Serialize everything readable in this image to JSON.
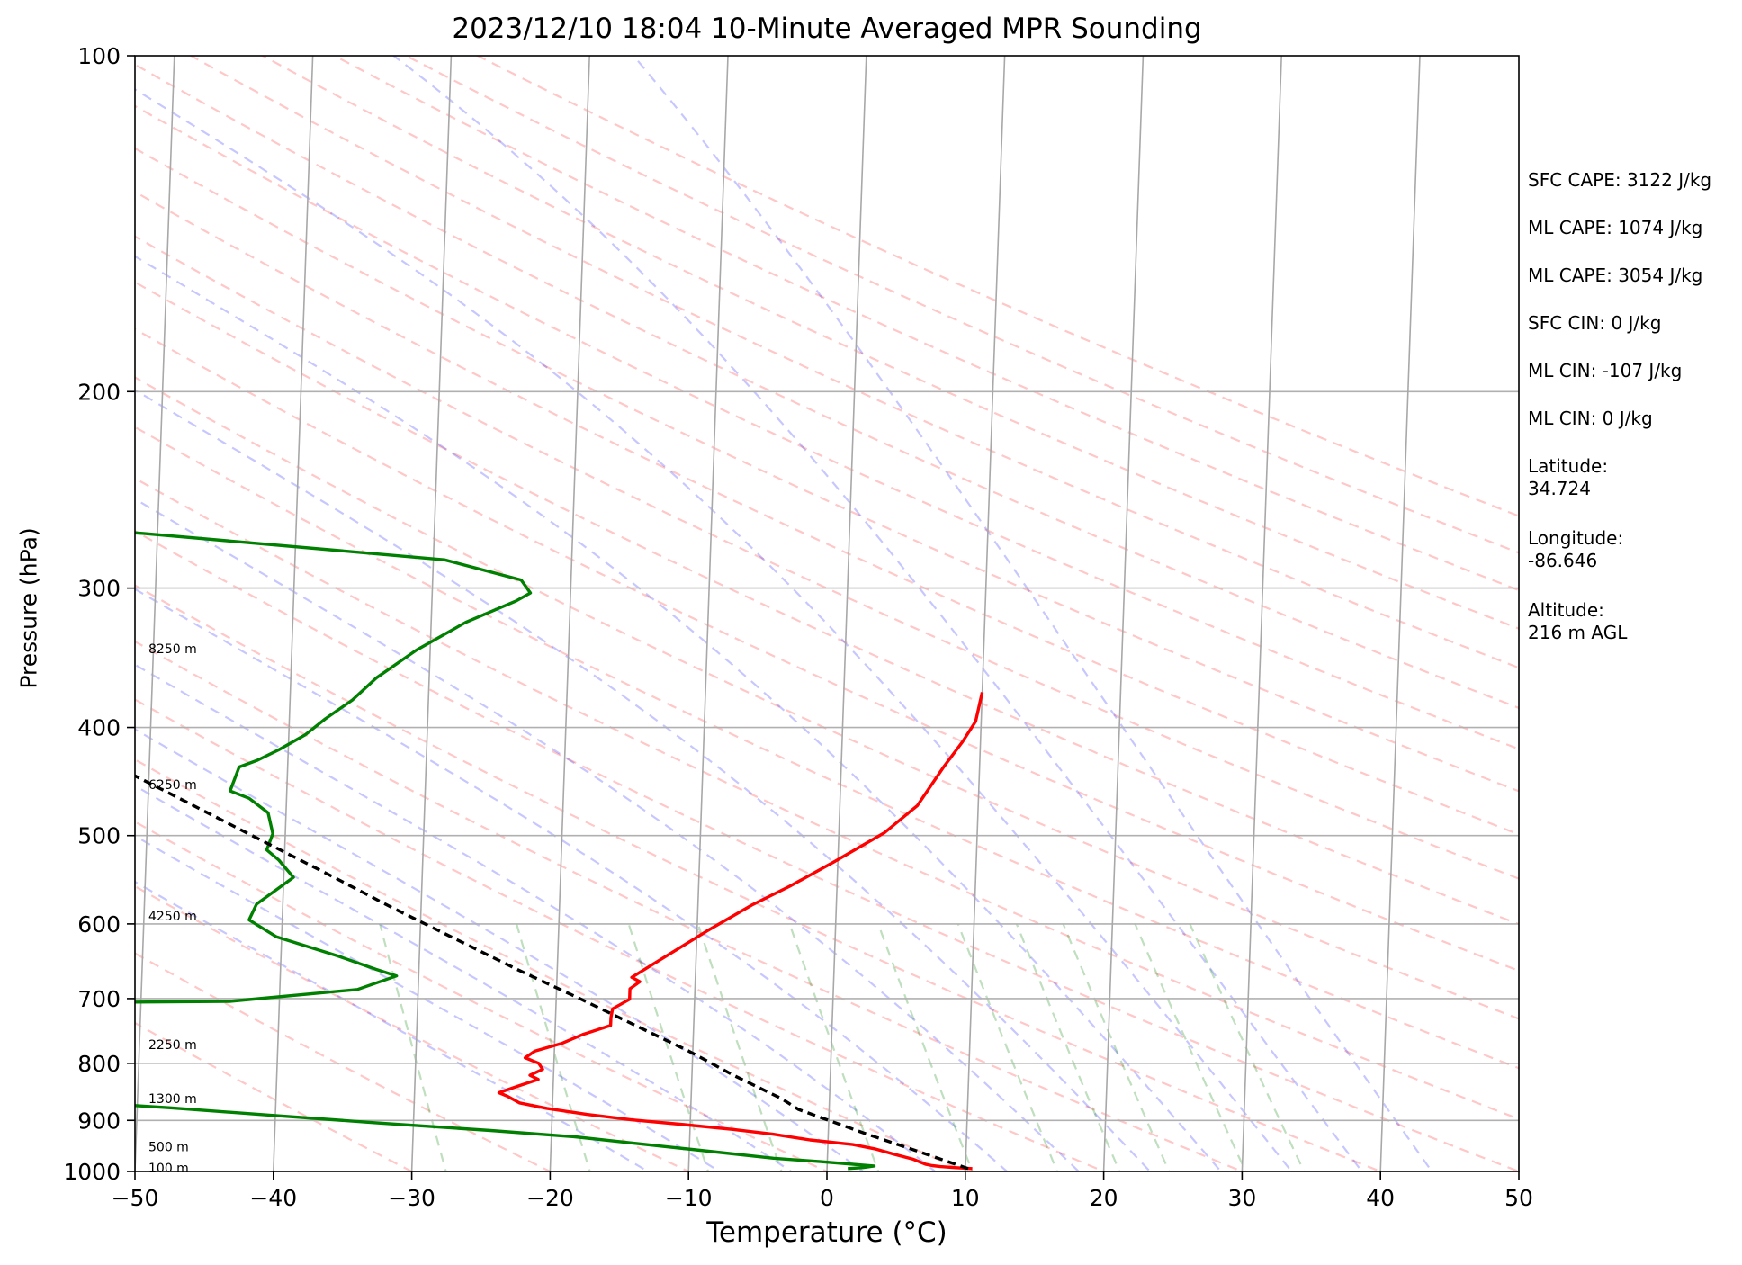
{
  "chart_data": {
    "type": "line",
    "title": "2023/12/10 18:04 10-Minute Averaged MPR Sounding",
    "xlabel": "Temperature (°C)",
    "ylabel": "Pressure (hPa)",
    "xlim": [
      -50,
      50
    ],
    "ylim": [
      1000,
      100
    ],
    "y_scale": "log",
    "skew": "skew-T log-P",
    "x_ticks": [
      "−50",
      "−40",
      "−30",
      "−20",
      "−10",
      "0",
      "10",
      "20",
      "30",
      "40",
      "50"
    ],
    "x_tick_values": [
      -50,
      -40,
      -30,
      -20,
      -10,
      0,
      10,
      20,
      30,
      40,
      50
    ],
    "y_ticks": [
      "1000",
      "900",
      "800",
      "700",
      "600",
      "500",
      "400",
      "300",
      "200",
      "100"
    ],
    "y_tick_values": [
      1000,
      900,
      800,
      700,
      600,
      500,
      400,
      300,
      200,
      100
    ],
    "grid": true,
    "height_labels": [
      {
        "text": "8250 m",
        "p": 340
      },
      {
        "text": "6250 m",
        "p": 450
      },
      {
        "text": "4250 m",
        "p": 590
      },
      {
        "text": "2250 m",
        "p": 770
      },
      {
        "text": "1300 m",
        "p": 860
      },
      {
        "text": "500 m",
        "p": 950
      },
      {
        "text": "100 m",
        "p": 993
      }
    ],
    "series": [
      {
        "kind": "temperature",
        "color": "#ff0000",
        "points": [
          [
            994,
            10.5
          ],
          [
            992,
            9.2
          ],
          [
            990,
            8.2
          ],
          [
            988,
            7.6
          ],
          [
            985,
            7.1
          ],
          [
            975,
            6.2
          ],
          [
            965,
            4.8
          ],
          [
            955,
            3.5
          ],
          [
            946,
            1.8
          ],
          [
            937,
            -1.3
          ],
          [
            926,
            -4.0
          ],
          [
            917,
            -6.9
          ],
          [
            908,
            -10.4
          ],
          [
            899,
            -14.2
          ],
          [
            889,
            -17.5
          ],
          [
            878,
            -20.4
          ],
          [
            868,
            -22.4
          ],
          [
            856,
            -23.3
          ],
          [
            850,
            -23.9
          ],
          [
            839,
            -22.6
          ],
          [
            827,
            -21.1
          ],
          [
            820,
            -21.7
          ],
          [
            810,
            -20.8
          ],
          [
            800,
            -21.1
          ],
          [
            791,
            -22.1
          ],
          [
            780,
            -21.4
          ],
          [
            768,
            -19.5
          ],
          [
            754,
            -18.0
          ],
          [
            740,
            -16.0
          ],
          [
            728,
            -16.0
          ],
          [
            715,
            -15.9
          ],
          [
            701,
            -14.7
          ],
          [
            686,
            -14.7
          ],
          [
            676,
            -14.0
          ],
          [
            670,
            -14.6
          ],
          [
            652,
            -13.1
          ],
          [
            609,
            -9.3
          ],
          [
            577,
            -6.1
          ],
          [
            555,
            -3.4
          ],
          [
            528,
            -0.3
          ],
          [
            497,
            3.3
          ],
          [
            470,
            5.6
          ],
          [
            434,
            7.4
          ],
          [
            412,
            8.7
          ],
          [
            395,
            9.6
          ],
          [
            372,
            10.0
          ]
        ]
      },
      {
        "kind": "dewpoint",
        "color": "#008000",
        "points": [
          [
            994,
            1.5
          ],
          [
            992,
            2.6
          ],
          [
            989,
            3.4
          ],
          [
            985,
            1.8
          ],
          [
            980,
            -0.5
          ],
          [
            973,
            -3.9
          ],
          [
            960,
            -8.3
          ],
          [
            950,
            -11.7
          ],
          [
            942,
            -14.5
          ],
          [
            931,
            -18.3
          ],
          [
            919,
            -24.4
          ],
          [
            905,
            -32.5
          ],
          [
            891,
            -40.1
          ],
          [
            877,
            -47.6
          ],
          [
            864,
            -56.0
          ],
          [
            853,
            -64.0
          ],
          [
            706,
            -56.8
          ],
          [
            704,
            -43.6
          ],
          [
            687,
            -34.4
          ],
          [
            668,
            -31.6
          ],
          [
            659,
            -33.1
          ],
          [
            641,
            -35.9
          ],
          [
            616,
            -40.4
          ],
          [
            595,
            -42.4
          ],
          [
            576,
            -41.9
          ],
          [
            545,
            -39.3
          ],
          [
            526,
            -40.4
          ],
          [
            515,
            -41.3
          ],
          [
            498,
            -40.9
          ],
          [
            477,
            -41.3
          ],
          [
            463,
            -42.7
          ],
          [
            456,
            -44.1
          ],
          [
            434,
            -43.5
          ],
          [
            428,
            -42.2
          ],
          [
            419,
            -40.7
          ],
          [
            406,
            -38.8
          ],
          [
            393,
            -37.4
          ],
          [
            378,
            -35.5
          ],
          [
            361,
            -33.8
          ],
          [
            341,
            -31.0
          ],
          [
            322,
            -27.5
          ],
          [
            308,
            -23.9
          ],
          [
            303,
            -22.9
          ],
          [
            295,
            -23.6
          ],
          [
            283,
            -29.2
          ],
          [
            268,
            -51.0
          ],
          [
            258,
            -71.0
          ]
        ]
      },
      {
        "kind": "parcel",
        "color": "#000000",
        "points": [
          [
            994,
            10.2
          ],
          [
            960,
            6.6
          ],
          [
            925,
            2.7
          ],
          [
            880,
            -2.2
          ],
          [
            860,
            -3.5
          ],
          [
            820,
            -7.0
          ],
          [
            780,
            -10.3
          ],
          [
            740,
            -14.2
          ],
          [
            700,
            -18.3
          ],
          [
            660,
            -22.8
          ],
          [
            620,
            -27.3
          ],
          [
            580,
            -32.1
          ],
          [
            540,
            -37.0
          ],
          [
            500,
            -42.4
          ],
          [
            460,
            -48.2
          ],
          [
            420,
            -54.6
          ],
          [
            380,
            -61.8
          ],
          [
            340,
            -69.6
          ],
          [
            300,
            -78.6
          ],
          [
            265,
            -87.7
          ],
          [
            248,
            -93.2
          ]
        ]
      }
    ]
  },
  "side_panel": {
    "sfc_cape": "SFC CAPE: 3122 J/kg",
    "ml_cape_1": "ML CAPE: 1074 J/kg",
    "ml_cape_2": "ML CAPE: 3054 J/kg",
    "sfc_cin": "SFC CIN: 0 J/kg",
    "ml_cin_1": "ML CIN: -107 J/kg",
    "ml_cin_2": "ML CIN: 0 J/kg",
    "latitude_label": "Latitude:",
    "latitude_value": "34.724",
    "longitude_label": "Longitude:",
    "longitude_value": "-86.646",
    "altitude_label": "Altitude:",
    "altitude_value": "216 m AGL"
  }
}
